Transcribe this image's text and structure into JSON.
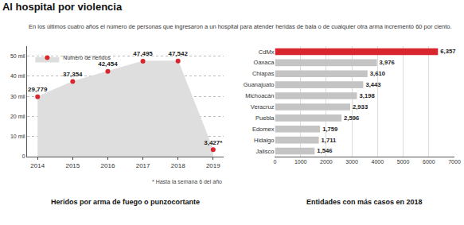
{
  "chart_data": [
    {
      "type": "area",
      "title": "Al hospital por violencia",
      "subtitle": "En los últimos cuatro años el número de personas que ingresaron a un hospital para atender heridas de bala o de cualquier otra arma incrementó 60 por ciento.",
      "categories": [
        "2014",
        "2015",
        "2016",
        "2017",
        "2018",
        "2019"
      ],
      "series": [
        {
          "name": "Número de heridos",
          "color": "#d7262e",
          "marker": "circle",
          "values": [
            29779,
            37354,
            42454,
            47495,
            47542,
            3427
          ],
          "value_labels": [
            "29,779",
            "37,354",
            "42,454",
            "47,495",
            "47,542",
            "3,427*"
          ]
        }
      ],
      "color": "#dedede",
      "ylim": [
        0,
        55000
      ],
      "yticks": [
        0,
        {
          "value": 10000,
          "label": "10 mil"
        },
        {
          "value": 20000,
          "label": "20 mil"
        },
        {
          "value": 30000,
          "label": "30 mil"
        },
        {
          "value": 40000,
          "label": "40 mil"
        },
        {
          "value": 50000,
          "label": "50 mil"
        }
      ],
      "grid": true,
      "legend": "top-left",
      "data_labels": true,
      "annotations": [
        "* Hasta la semana 6 del año"
      ],
      "caption": "Heridos por arma de fuego o punzocortante"
    },
    {
      "type": "bar",
      "orientation": "horizontal",
      "categories": [
        "CdMx",
        "Oaxaca",
        "Chiapas",
        "Guanajuato",
        "Michoacán",
        "Veracruz",
        "Puebla",
        "Edomex",
        "Hidalgo",
        "Jalisco"
      ],
      "values": [
        6357,
        3976,
        3610,
        3443,
        3198,
        2933,
        2596,
        1759,
        1711,
        1546
      ],
      "value_labels": [
        "6,357",
        "3,976",
        "3,610",
        "3,443",
        "3,198",
        "2,933",
        "2,596",
        "1,759",
        "1,711",
        "1,546"
      ],
      "colors": [
        "#d7262e",
        "#c4c4c4",
        "#c4c4c4",
        "#c4c4c4",
        "#c4c4c4",
        "#c4c4c4",
        "#c4c4c4",
        "#c4c4c4",
        "#c4c4c4",
        "#c4c4c4"
      ],
      "xlim": [
        0,
        7000
      ],
      "xticks": [
        0,
        1000,
        2000,
        3000,
        4000,
        5000,
        6000,
        7000
      ],
      "grid": true,
      "data_labels": true,
      "caption": "Entidades con más casos en 2018"
    }
  ]
}
